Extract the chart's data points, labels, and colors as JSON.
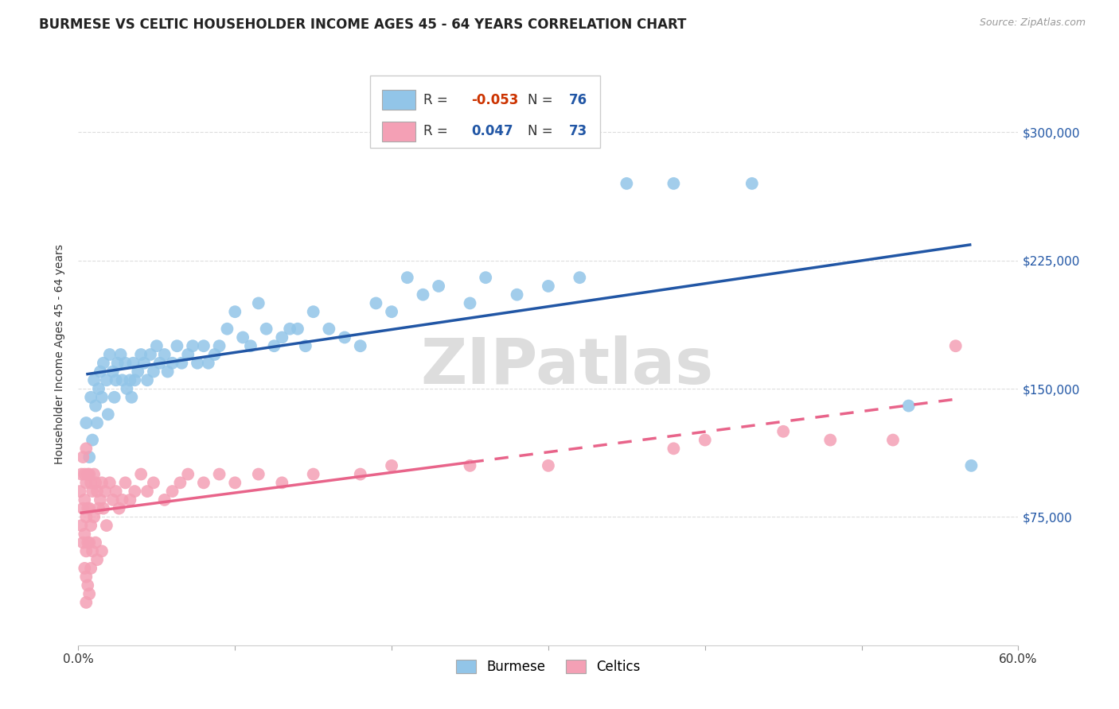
{
  "title": "BURMESE VS CELTIC HOUSEHOLDER INCOME AGES 45 - 64 YEARS CORRELATION CHART",
  "source": "Source: ZipAtlas.com",
  "ylabel": "Householder Income Ages 45 - 64 years",
  "xlim": [
    0.0,
    0.6
  ],
  "ylim": [
    0,
    340000
  ],
  "yticks": [
    75000,
    150000,
    225000,
    300000
  ],
  "ytick_labels": [
    "$75,000",
    "$150,000",
    "$225,000",
    "$300,000"
  ],
  "xticks": [
    0.0,
    0.1,
    0.2,
    0.3,
    0.4,
    0.5,
    0.6
  ],
  "xtick_labels": [
    "0.0%",
    "",
    "",
    "",
    "",
    "",
    "60.0%"
  ],
  "legend_label1": "Burmese",
  "legend_label2": "Celtics",
  "burmese_color": "#92C5E8",
  "celtics_color": "#F4A0B5",
  "trend_burmese_color": "#2156A5",
  "trend_celtics_color": "#E8648A",
  "burmese_x": [
    0.005,
    0.007,
    0.008,
    0.009,
    0.01,
    0.011,
    0.012,
    0.013,
    0.014,
    0.015,
    0.016,
    0.018,
    0.019,
    0.02,
    0.022,
    0.023,
    0.024,
    0.025,
    0.027,
    0.028,
    0.03,
    0.031,
    0.033,
    0.034,
    0.035,
    0.036,
    0.038,
    0.04,
    0.042,
    0.044,
    0.046,
    0.048,
    0.05,
    0.052,
    0.055,
    0.057,
    0.06,
    0.063,
    0.066,
    0.07,
    0.073,
    0.076,
    0.08,
    0.083,
    0.087,
    0.09,
    0.095,
    0.1,
    0.105,
    0.11,
    0.115,
    0.12,
    0.125,
    0.13,
    0.135,
    0.14,
    0.145,
    0.15,
    0.16,
    0.17,
    0.18,
    0.19,
    0.2,
    0.21,
    0.22,
    0.23,
    0.25,
    0.26,
    0.28,
    0.3,
    0.32,
    0.35,
    0.38,
    0.43,
    0.53,
    0.57
  ],
  "burmese_y": [
    130000,
    110000,
    145000,
    120000,
    155000,
    140000,
    130000,
    150000,
    160000,
    145000,
    165000,
    155000,
    135000,
    170000,
    160000,
    145000,
    155000,
    165000,
    170000,
    155000,
    165000,
    150000,
    155000,
    145000,
    165000,
    155000,
    160000,
    170000,
    165000,
    155000,
    170000,
    160000,
    175000,
    165000,
    170000,
    160000,
    165000,
    175000,
    165000,
    170000,
    175000,
    165000,
    175000,
    165000,
    170000,
    175000,
    185000,
    195000,
    180000,
    175000,
    200000,
    185000,
    175000,
    180000,
    185000,
    185000,
    175000,
    195000,
    185000,
    180000,
    175000,
    200000,
    195000,
    215000,
    205000,
    210000,
    200000,
    215000,
    205000,
    210000,
    215000,
    270000,
    270000,
    270000,
    140000,
    105000
  ],
  "celtics_x": [
    0.001,
    0.002,
    0.002,
    0.003,
    0.003,
    0.003,
    0.004,
    0.004,
    0.004,
    0.004,
    0.005,
    0.005,
    0.005,
    0.005,
    0.005,
    0.005,
    0.006,
    0.006,
    0.006,
    0.006,
    0.007,
    0.007,
    0.007,
    0.007,
    0.008,
    0.008,
    0.008,
    0.009,
    0.009,
    0.01,
    0.01,
    0.011,
    0.011,
    0.012,
    0.012,
    0.013,
    0.014,
    0.015,
    0.015,
    0.016,
    0.017,
    0.018,
    0.02,
    0.022,
    0.024,
    0.026,
    0.028,
    0.03,
    0.033,
    0.036,
    0.04,
    0.044,
    0.048,
    0.055,
    0.06,
    0.065,
    0.07,
    0.08,
    0.09,
    0.1,
    0.115,
    0.13,
    0.15,
    0.18,
    0.2,
    0.25,
    0.3,
    0.38,
    0.4,
    0.45,
    0.48,
    0.52,
    0.56
  ],
  "celtics_y": [
    90000,
    100000,
    70000,
    110000,
    80000,
    60000,
    100000,
    85000,
    65000,
    45000,
    115000,
    95000,
    75000,
    55000,
    40000,
    25000,
    100000,
    80000,
    60000,
    35000,
    100000,
    80000,
    60000,
    30000,
    95000,
    70000,
    45000,
    90000,
    55000,
    100000,
    75000,
    95000,
    60000,
    90000,
    50000,
    80000,
    85000,
    95000,
    55000,
    80000,
    90000,
    70000,
    95000,
    85000,
    90000,
    80000,
    85000,
    95000,
    85000,
    90000,
    100000,
    90000,
    95000,
    85000,
    90000,
    95000,
    100000,
    95000,
    100000,
    95000,
    100000,
    95000,
    100000,
    100000,
    105000,
    105000,
    105000,
    115000,
    120000,
    125000,
    120000,
    120000,
    175000
  ],
  "background_color": "#FFFFFF",
  "grid_color": "#DDDDDD",
  "title_fontsize": 12,
  "axis_label_fontsize": 10,
  "tick_fontsize": 11,
  "watermark": "ZIPatlas",
  "watermark_color": "#DDDDDD",
  "r1_val": "-0.053",
  "r2_val": "0.047",
  "n1_val": "76",
  "n2_val": "73"
}
